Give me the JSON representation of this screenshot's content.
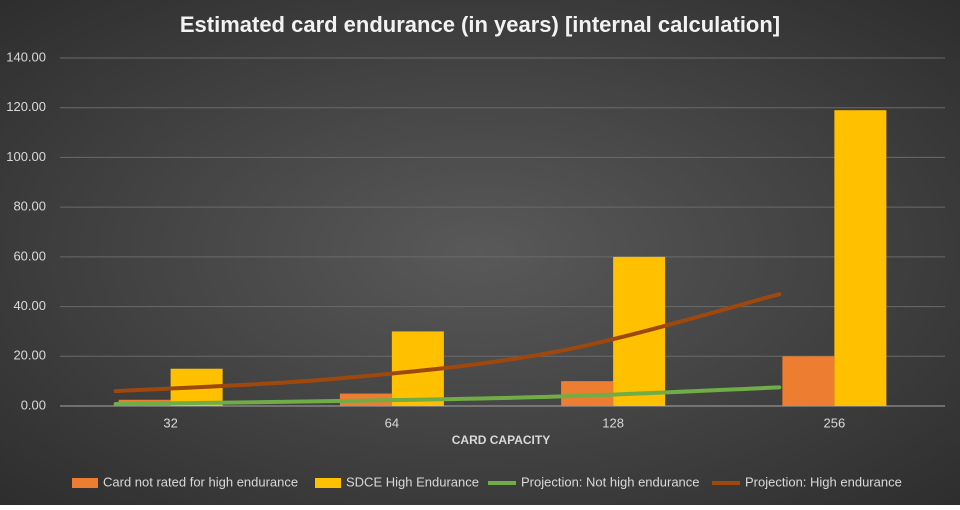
{
  "chart_data": {
    "type": "bar",
    "title": "Estimated card endurance (in years) [internal calculation]",
    "x_label": "CARD CAPACITY",
    "categories": [
      "32",
      "64",
      "128",
      "256"
    ],
    "series": [
      {
        "name": "Card not rated for high endurance",
        "type": "bar",
        "color": "#ed7d31",
        "values": [
          2.5,
          5,
          10,
          20
        ]
      },
      {
        "name": "SDCE High Endurance",
        "type": "bar",
        "color": "#ffc000",
        "values": [
          15,
          30,
          60,
          119
        ]
      },
      {
        "name": "Projection: Not high endurance",
        "type": "line",
        "color": "#70ad47",
        "values": [
          0.8,
          2,
          3.8,
          7.5
        ]
      },
      {
        "name": "Projection: High endurance",
        "type": "line",
        "color": "#9e480e",
        "values": [
          6,
          11,
          22,
          45
        ]
      }
    ],
    "ylim": [
      0,
      140
    ],
    "yticks": [
      {
        "value": 0,
        "label": "0.00"
      },
      {
        "value": 20,
        "label": "20.00"
      },
      {
        "value": 40,
        "label": "40.00"
      },
      {
        "value": 60,
        "label": "60.00"
      },
      {
        "value": 80,
        "label": "80.00"
      },
      {
        "value": 100,
        "label": "100.00"
      },
      {
        "value": 120,
        "label": "120.00"
      },
      {
        "value": 140,
        "label": "140.00"
      }
    ],
    "grid": true,
    "smooth": true,
    "legend": "bottom"
  }
}
